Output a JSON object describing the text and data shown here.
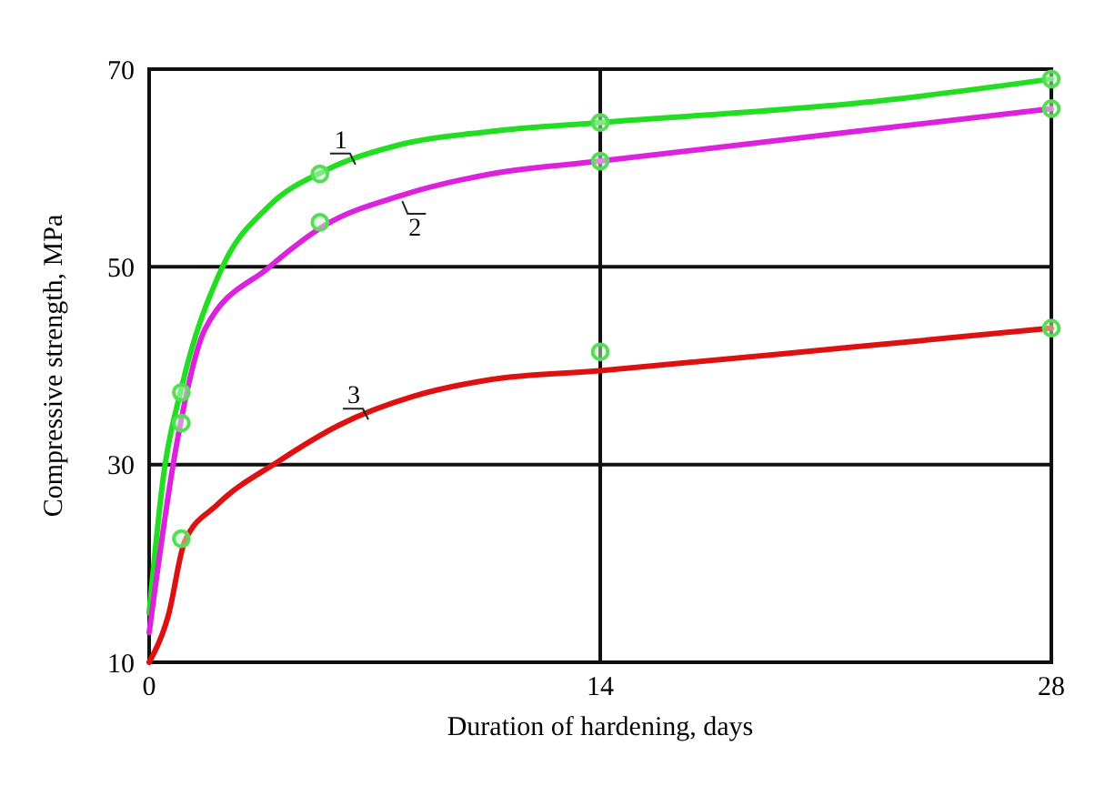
{
  "chart_data": {
    "type": "line",
    "xlabel": "Duration of hardening, days",
    "ylabel": "Compressive strength, MPa",
    "xlim": [
      0,
      28
    ],
    "ylim": [
      10,
      70
    ],
    "xticks": [
      0,
      14,
      28
    ],
    "yticks": [
      10,
      30,
      50,
      70
    ],
    "grid": true,
    "marker": "none",
    "line_style": "solid",
    "series": [
      {
        "name": "1",
        "color": "#22dd22",
        "x": [
          0,
          0.45,
          1,
          2.26,
          3.7,
          5.5,
          7.6,
          10.6,
          14,
          22.7,
          28
        ],
        "values": [
          15,
          29,
          37.7,
          49.9,
          56.1,
          59.8,
          62.2,
          63.7,
          64.6,
          66.8,
          69
        ]
      },
      {
        "name": "2",
        "color": "#dd22dd",
        "x": [
          0,
          0.85,
          1.75,
          3.7,
          5.5,
          7.8,
          10.6,
          14,
          21.9,
          28
        ],
        "values": [
          13,
          32,
          43.8,
          49.9,
          54.3,
          57.2,
          59.4,
          60.7,
          63.7,
          66
        ]
      },
      {
        "name": "3",
        "color": "#dd1111",
        "x": [
          0,
          0.6,
          1.1,
          2.1,
          4,
          5.9,
          8.2,
          10.6,
          14,
          21.9,
          28
        ],
        "values": [
          10,
          14.8,
          22.2,
          25.9,
          30.3,
          34,
          36.9,
          38.6,
          39.5,
          41.9,
          43.8
        ]
      },
      {
        "type": "scatter",
        "marker": "circle",
        "color": "#55dd55",
        "x": [
          1,
          5.3,
          14,
          28,
          1,
          5.3,
          14,
          28,
          1,
          14,
          28
        ],
        "values": [
          37.3,
          59.4,
          64.6,
          69,
          34.2,
          54.5,
          60.7,
          66,
          22.5,
          41.4,
          43.8
        ]
      }
    ]
  }
}
